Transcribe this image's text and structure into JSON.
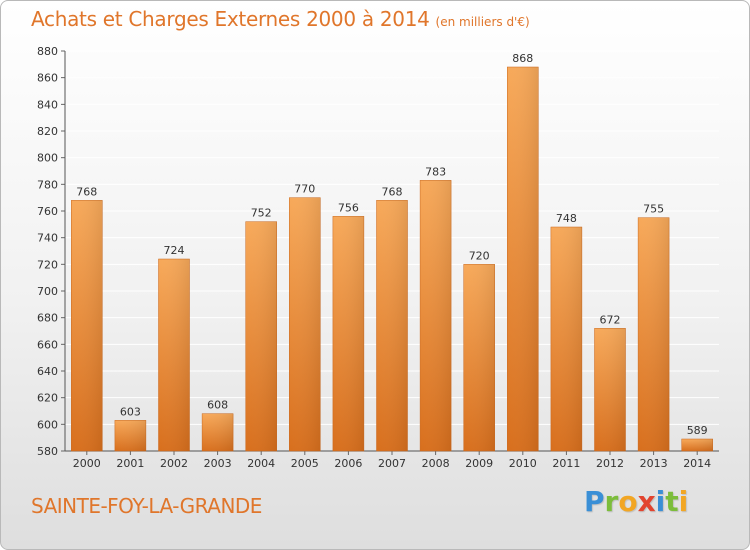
{
  "header": {
    "title": "Achats et Charges Externes 2000 à 2014",
    "unit": "(en milliers d'€)"
  },
  "footer": {
    "commune": "SAINTE-FOY-LA-GRANDE",
    "brand_letters": [
      {
        "char": "P",
        "color": "#3a8fd6"
      },
      {
        "char": "r",
        "color": "#7cbd3b"
      },
      {
        "char": "o",
        "color": "#f2a623"
      },
      {
        "char": "x",
        "color": "#e2442f"
      },
      {
        "char": "i",
        "color": "#3a8fd6"
      },
      {
        "char": "t",
        "color": "#7cbd3b"
      },
      {
        "char": "i",
        "color": "#f2a623"
      }
    ]
  },
  "chart_data": {
    "type": "bar",
    "title": "Achats et Charges Externes 2000 à 2014",
    "subtitle": "(en milliers d'€)",
    "xlabel": "",
    "ylabel": "",
    "categories": [
      "2000",
      "2001",
      "2002",
      "2003",
      "2004",
      "2005",
      "2006",
      "2007",
      "2008",
      "2009",
      "2010",
      "2011",
      "2012",
      "2013",
      "2014"
    ],
    "values": [
      768,
      603,
      724,
      608,
      752,
      770,
      756,
      768,
      783,
      720,
      868,
      748,
      672,
      755,
      589
    ],
    "ylim": [
      580,
      880
    ],
    "yticks": [
      580,
      600,
      620,
      640,
      660,
      680,
      700,
      720,
      740,
      760,
      780,
      800,
      820,
      840,
      860,
      880
    ],
    "grid": true,
    "legend": "none",
    "bar_color": "#ee8a35"
  }
}
